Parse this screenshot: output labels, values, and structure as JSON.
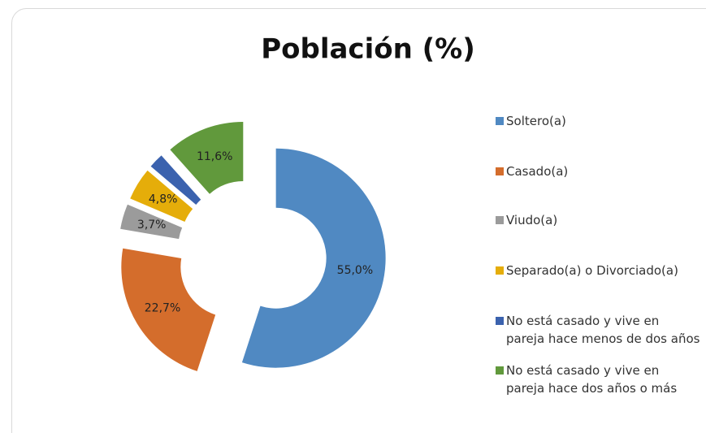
{
  "chart_data": {
    "type": "donut",
    "title": "Población (%)",
    "categories": [
      "Soltero(a)",
      "Casado(a)",
      "Viudo(a)",
      "Separado(a) o Divorciado(a)",
      "No está casado y vive en pareja hace menos de dos años",
      "No está casado y vive en pareja hace dos años o más"
    ],
    "values": [
      55.0,
      22.7,
      3.7,
      4.8,
      2.2,
      11.6
    ],
    "value_labels": [
      "55,0%",
      "22,7%",
      "3,7%",
      "4,8%",
      null,
      "11,6%"
    ],
    "colors": [
      "#5089c2",
      "#d46d2c",
      "#9b9b9b",
      "#e5ad0a",
      "#3b62ae",
      "#61993c"
    ],
    "legend": "right"
  }
}
